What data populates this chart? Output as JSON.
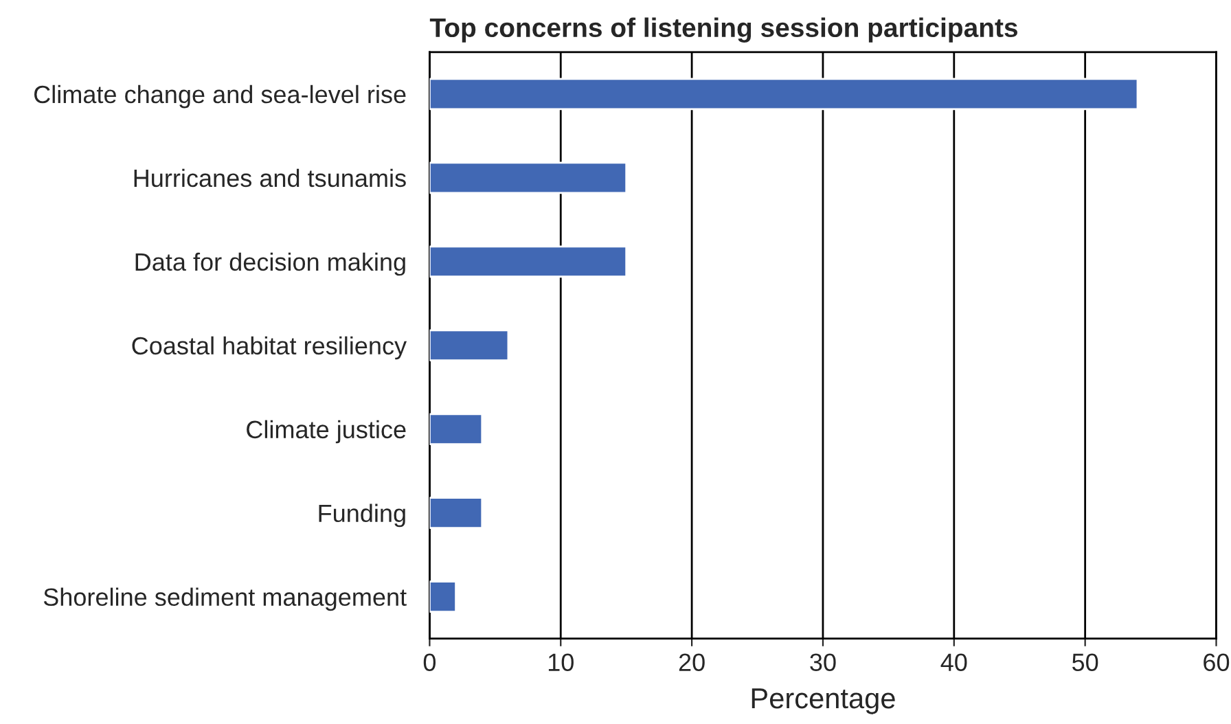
{
  "chart_data": {
    "type": "bar",
    "orientation": "horizontal",
    "title": "Top concerns of listening session participants",
    "xlabel": "Percentage",
    "categories": [
      "Climate change and sea-level rise",
      "Hurricanes and tsunamis",
      "Data for decision making",
      "Coastal habitat resiliency",
      "Climate justice",
      "Funding",
      "Shoreline sediment management"
    ],
    "values": [
      54,
      15,
      15,
      6,
      4,
      4,
      2
    ],
    "color": "#4168b4",
    "xlim": [
      0,
      60
    ],
    "xticks": [
      0,
      10,
      20,
      30,
      40,
      50,
      60
    ],
    "grid": "x",
    "legend": false
  }
}
